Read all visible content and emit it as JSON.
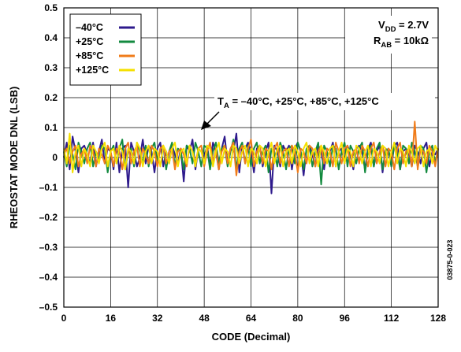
{
  "chart_data": {
    "type": "line",
    "title": "",
    "xlabel": "CODE (Decimal)",
    "ylabel": "RHEOSTAT MODE DNL (LSB)",
    "xlim": [
      0,
      128
    ],
    "ylim": [
      -0.5,
      0.5
    ],
    "xticks": [
      "0",
      "16",
      "32",
      "48",
      "64",
      "80",
      "96",
      "112",
      "128"
    ],
    "yticks": [
      "0.5",
      "0.4",
      "0.3",
      "0.2",
      "0.1",
      "0",
      "–0.1",
      "–0.2",
      "–0.3",
      "–0.4",
      "–0.5"
    ],
    "grid": true,
    "legend_position": "top-left",
    "series": [
      {
        "name": "–40°C",
        "color": "#2e1a8c",
        "values": [
          0.0,
          0.05,
          -0.04,
          0.07,
          0.02,
          -0.05,
          0.03,
          0.04,
          0.01,
          -0.02,
          0.05,
          -0.03,
          0.02,
          0.06,
          -0.02,
          0.03,
          0.02,
          -0.04,
          0.05,
          -0.05,
          0.03,
          0.04,
          -0.1,
          0.05,
          0.02,
          -0.03,
          0.0,
          0.06,
          -0.02,
          0.04,
          0.02,
          -0.05,
          0.03,
          0.05,
          -0.03,
          0.02,
          -0.02,
          0.04,
          0.01,
          -0.02,
          0.03,
          -0.08,
          0.04,
          0.02,
          0.06,
          -0.04,
          0.03,
          0.02,
          0.0,
          0.04,
          -0.03,
          0.05,
          0.02,
          -0.04,
          0.03,
          0.07,
          -0.02,
          0.03,
          0.02,
          0.08,
          -0.05,
          0.04,
          0.03,
          0.05,
          0.02,
          -0.05,
          0.03,
          0.04,
          -0.03,
          0.02,
          0.05,
          -0.12,
          0.04,
          0.02,
          -0.03,
          0.04,
          0.02,
          0.04,
          -0.04,
          0.03,
          0.05,
          0.02,
          -0.06,
          0.03,
          0.04,
          0.01,
          -0.03,
          0.04,
          0.02,
          -0.04,
          0.03,
          0.02,
          0.05,
          -0.03,
          0.02,
          0.03,
          -0.02,
          0.04,
          0.01,
          -0.04,
          0.03,
          0.04,
          0.02,
          -0.04,
          0.03,
          0.05,
          -0.03,
          0.02,
          0.04,
          -0.05,
          0.03,
          0.02,
          -0.03,
          0.04,
          0.05,
          -0.04,
          0.02,
          0.03,
          0.01,
          -0.03,
          0.04,
          0.02,
          -0.02,
          0.03,
          0.05,
          -0.03,
          0.02,
          0.01,
          0.03
        ]
      },
      {
        "name": "+25°C",
        "color": "#138a3f",
        "values": [
          0.02,
          -0.03,
          0.04,
          0.01,
          -0.04,
          0.05,
          0.02,
          -0.02,
          0.03,
          0.05,
          -0.03,
          0.02,
          -0.01,
          0.04,
          0.03,
          -0.05,
          0.02,
          0.04,
          -0.02,
          0.03,
          0.06,
          -0.04,
          0.02,
          0.03,
          -0.03,
          0.05,
          0.02,
          -0.02,
          0.04,
          -0.03,
          0.03,
          0.05,
          -0.02,
          0.03,
          0.04,
          -0.04,
          0.02,
          0.05,
          -0.03,
          0.03,
          0.02,
          -0.04,
          0.04,
          0.03,
          -0.02,
          0.05,
          0.02,
          -0.03,
          0.04,
          0.03,
          -0.04,
          0.02,
          0.05,
          -0.02,
          0.03,
          0.04,
          -0.03,
          0.02,
          0.06,
          -0.04,
          0.03,
          0.05,
          -0.02,
          0.04,
          -0.03,
          0.03,
          0.05,
          -0.02,
          0.02,
          0.04,
          -0.05,
          0.03,
          0.02,
          -0.03,
          0.05,
          0.02,
          -0.04,
          0.03,
          0.04,
          -0.02,
          0.05,
          0.02,
          -0.04,
          0.03,
          0.04,
          -0.03,
          0.02,
          0.05,
          -0.09,
          0.04,
          0.02,
          -0.03,
          0.04,
          0.03,
          -0.04,
          0.02,
          0.05,
          -0.03,
          0.04,
          0.02,
          -0.02,
          0.03,
          0.05,
          -0.05,
          0.02,
          0.04,
          -0.03,
          0.03,
          0.05,
          -0.04,
          0.02,
          0.03,
          -0.03,
          0.05,
          0.02,
          -0.04,
          0.04,
          0.03,
          -0.02,
          0.05,
          0.02,
          -0.03,
          0.04,
          0.03,
          -0.05,
          0.02,
          0.04,
          -0.02,
          0.03
        ]
      },
      {
        "name": "+85°C",
        "color": "#f07c1a",
        "values": [
          0.01,
          0.03,
          -0.02,
          0.02,
          0.04,
          -0.03,
          0.01,
          0.03,
          -0.02,
          0.04,
          0.02,
          -0.03,
          0.03,
          0.01,
          -0.02,
          0.04,
          0.02,
          -0.03,
          0.03,
          0.02,
          -0.04,
          0.03,
          0.05,
          -0.02,
          0.02,
          0.04,
          -0.03,
          0.03,
          0.01,
          -0.02,
          0.04,
          0.02,
          -0.03,
          0.03,
          0.04,
          -0.02,
          0.02,
          0.03,
          -0.04,
          0.02,
          0.03,
          0.01,
          -0.03,
          0.04,
          0.02,
          -0.02,
          0.03,
          0.04,
          -0.03,
          0.02,
          0.05,
          -0.02,
          0.03,
          -0.04,
          0.02,
          0.04,
          -0.02,
          0.03,
          0.05,
          -0.06,
          0.02,
          0.04,
          -0.02,
          0.03,
          0.06,
          -0.03,
          0.02,
          0.04,
          -0.02,
          0.03,
          0.02,
          -0.04,
          0.03,
          0.05,
          -0.02,
          0.02,
          0.03,
          -0.03,
          0.04,
          0.02,
          -0.05,
          0.03,
          0.02,
          -0.02,
          0.04,
          0.03,
          -0.03,
          0.02,
          0.04,
          -0.02,
          0.03,
          0.02,
          -0.03,
          0.05,
          0.02,
          -0.02,
          0.03,
          0.04,
          -0.03,
          0.02,
          0.03,
          -0.02,
          0.04,
          0.02,
          -0.03,
          0.03,
          0.05,
          -0.02,
          0.02,
          0.04,
          -0.03,
          0.03,
          0.02,
          -0.04,
          0.03,
          0.05,
          -0.02,
          0.02,
          0.03,
          -0.03,
          0.12,
          -0.04,
          0.03,
          0.02,
          -0.02,
          0.04,
          0.02,
          -0.03,
          0.03
        ]
      },
      {
        "name": "+125°C",
        "color": "#f5e000",
        "values": [
          0.03,
          -0.02,
          0.08,
          -0.05,
          0.02,
          0.04,
          -0.03,
          0.03,
          0.01,
          -0.03,
          0.04,
          0.02,
          -0.02,
          0.03,
          0.05,
          -0.03,
          0.02,
          0.03,
          -0.02,
          0.04,
          0.02,
          -0.04,
          0.03,
          0.02,
          -0.02,
          0.05,
          0.03,
          -0.03,
          0.02,
          0.04,
          -0.02,
          0.03,
          0.02,
          -0.03,
          0.04,
          0.02,
          -0.02,
          0.03,
          0.05,
          -0.03,
          0.02,
          0.03,
          -0.02,
          0.04,
          0.02,
          -0.03,
          0.03,
          0.02,
          -0.02,
          0.04,
          0.03,
          -0.03,
          0.02,
          0.05,
          -0.02,
          0.03,
          0.02,
          -0.03,
          0.04,
          0.03,
          -0.02,
          0.02,
          0.04,
          -0.03,
          0.03,
          0.02,
          -0.02,
          0.04,
          0.03,
          -0.03,
          0.02,
          0.05,
          -0.02,
          0.03,
          0.04,
          -0.03,
          0.02,
          0.03,
          -0.02,
          0.04,
          0.02,
          -0.03,
          0.03,
          0.05,
          -0.02,
          0.02,
          0.03,
          -0.03,
          0.04,
          0.02,
          -0.02,
          0.03,
          0.04,
          -0.03,
          0.02,
          0.05,
          -0.02,
          0.03,
          0.02,
          -0.03,
          0.04,
          0.03,
          -0.02,
          0.02,
          0.04,
          -0.03,
          0.03,
          0.02,
          -0.02,
          0.04,
          0.03,
          -0.03,
          0.02,
          0.05,
          -0.02,
          0.03,
          0.02,
          -0.03,
          0.04,
          0.02,
          -0.02,
          0.03,
          0.04,
          -0.03,
          0.02,
          0.03,
          -0.02,
          0.04,
          0.02
        ]
      }
    ],
    "annotations": {
      "conditions_vdd": {
        "symbol": "V",
        "sub": "DD",
        "rest": " = 2.7V"
      },
      "conditions_rab": {
        "symbol": "R",
        "sub": "AB",
        "rest": " = 10kΩ"
      },
      "temps": {
        "symbol": "T",
        "sub": "A",
        "rest": " = –40°C, +25°C, +85°C, +125°C"
      },
      "figure_id": "03875-0-023"
    }
  }
}
